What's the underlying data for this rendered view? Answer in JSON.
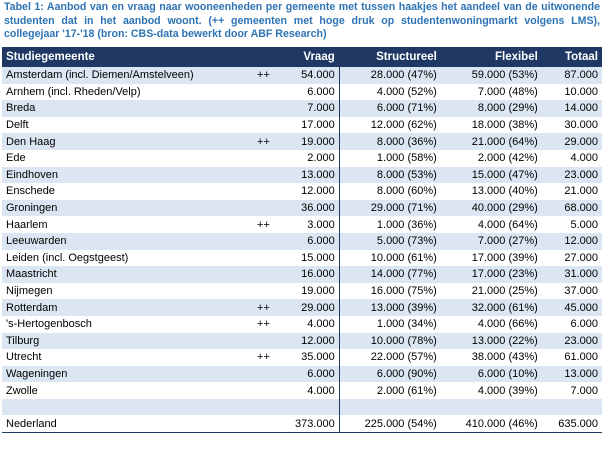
{
  "caption": "Tabel 1: Aanbod van en vraag naar wooneenheden per gemeente met tussen haakjes het aandeel van de uitwonende studenten dat in het aanbod woont. (++ gemeenten met hoge druk op studentenwoningmarkt volgens LMS), collegejaar '17-'18 (bron: CBS-data bewerkt door ABF Research)",
  "table": {
    "header": [
      "Studiegemeente",
      "Vraag",
      "Structureel",
      "Flexibel",
      "Totaal"
    ],
    "rows": [
      {
        "name": "Amsterdam (incl. Diemen/Amstelveen)",
        "mark": "++",
        "vraag": "54.000",
        "structureel": "28.000 (47%)",
        "flexibel": "59.000 (53%)",
        "totaal": "87.000"
      },
      {
        "name": "Arnhem (incl. Rheden/Velp)",
        "vraag": "6.000",
        "structureel": "4.000 (52%)",
        "flexibel": "7.000 (48%)",
        "totaal": "10.000"
      },
      {
        "name": "Breda",
        "vraag": "7.000",
        "structureel": "6.000 (71%)",
        "flexibel": "8.000 (29%)",
        "totaal": "14.000"
      },
      {
        "name": "Delft",
        "vraag": "17.000",
        "structureel": "12.000 (62%)",
        "flexibel": "18.000 (38%)",
        "totaal": "30.000"
      },
      {
        "name": "Den Haag",
        "mark": "++",
        "vraag": "19.000",
        "structureel": "8.000 (36%)",
        "flexibel": "21.000 (64%)",
        "totaal": "29.000"
      },
      {
        "name": "Ede",
        "vraag": "2.000",
        "structureel": "1.000 (58%)",
        "flexibel": "2.000 (42%)",
        "totaal": "4.000"
      },
      {
        "name": "Eindhoven",
        "vraag": "13.000",
        "structureel": "8.000 (53%)",
        "flexibel": "15.000 (47%)",
        "totaal": "23.000"
      },
      {
        "name": "Enschede",
        "vraag": "12.000",
        "structureel": "8.000 (60%)",
        "flexibel": "13.000 (40%)",
        "totaal": "21.000"
      },
      {
        "name": "Groningen",
        "vraag": "36.000",
        "structureel": "29.000 (71%)",
        "flexibel": "40.000 (29%)",
        "totaal": "68.000"
      },
      {
        "name": "Haarlem",
        "mark": "++",
        "vraag": "3.000",
        "structureel": "1.000 (36%)",
        "flexibel": "4.000 (64%)",
        "totaal": "5.000"
      },
      {
        "name": "Leeuwarden",
        "vraag": "6.000",
        "structureel": "5.000 (73%)",
        "flexibel": "7.000 (27%)",
        "totaal": "12.000"
      },
      {
        "name": "Leiden (incl. Oegstgeest)",
        "vraag": "15.000",
        "structureel": "10.000 (61%)",
        "flexibel": "17.000 (39%)",
        "totaal": "27.000"
      },
      {
        "name": "Maastricht",
        "vraag": "16.000",
        "structureel": "14.000 (77%)",
        "flexibel": "17.000 (23%)",
        "totaal": "31.000"
      },
      {
        "name": "Nijmegen",
        "vraag": "19.000",
        "structureel": "16.000 (75%)",
        "flexibel": "21.000 (25%)",
        "totaal": "37.000"
      },
      {
        "name": "Rotterdam",
        "mark": "++",
        "vraag": "29.000",
        "structureel": "13.000 (39%)",
        "flexibel": "32.000 (61%)",
        "totaal": "45.000"
      },
      {
        "name": "'s-Hertogenbosch",
        "mark": "++",
        "vraag": "4.000",
        "structureel": "1.000 (34%)",
        "flexibel": "4.000 (66%)",
        "totaal": "6.000"
      },
      {
        "name": "Tilburg",
        "vraag": "12.000",
        "structureel": "10.000 (78%)",
        "flexibel": "13.000 (22%)",
        "totaal": "23.000"
      },
      {
        "name": "Utrecht",
        "mark": "++",
        "vraag": "35.000",
        "structureel": "22.000 (57%)",
        "flexibel": "38.000 (43%)",
        "totaal": "61.000"
      },
      {
        "name": "Wageningen",
        "vraag": "6.000",
        "structureel": "6.000 (90%)",
        "flexibel": "6.000 (10%)",
        "totaal": "13.000"
      },
      {
        "name": "Zwolle",
        "vraag": "4.000",
        "structureel": "2.000 (61%)",
        "flexibel": "4.000 (39%)",
        "totaal": "7.000"
      }
    ],
    "total": {
      "name": "Nederland",
      "vraag": "373.000",
      "structureel": "225.000 (54%)",
      "flexibel": "410.000 (46%)",
      "totaal": "635.000"
    }
  }
}
